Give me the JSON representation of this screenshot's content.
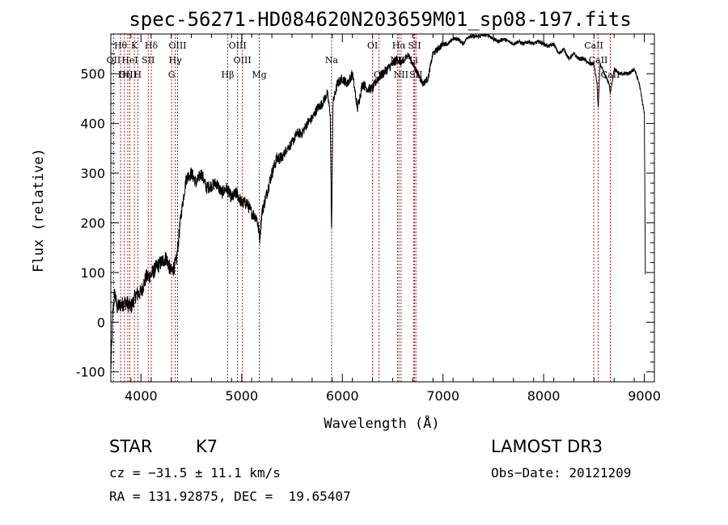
{
  "chart_data": {
    "type": "line",
    "title": "spec-56271-HD084620N203659M01_sp08-197.fits",
    "xlabel": "Wavelength (Å)",
    "ylabel": "Flux (relative)",
    "xlim": [
      3700,
      9100
    ],
    "ylim": [
      -120,
      580
    ],
    "xticks": [
      4000,
      5000,
      6000,
      7000,
      8000,
      9000
    ],
    "yticks": [
      -100,
      0,
      100,
      200,
      300,
      400,
      500
    ],
    "spectrum_anchors": {
      "x": [
        3700,
        3720,
        3740,
        3760,
        3800,
        3850,
        3900,
        3950,
        4000,
        4050,
        4100,
        4150,
        4200,
        4250,
        4300,
        4350,
        4400,
        4450,
        4500,
        4550,
        4600,
        4650,
        4700,
        4750,
        4800,
        4850,
        4900,
        4950,
        5000,
        5050,
        5100,
        5150,
        5180,
        5200,
        5250,
        5300,
        5350,
        5400,
        5450,
        5500,
        5550,
        5600,
        5650,
        5700,
        5750,
        5800,
        5850,
        5880,
        5893,
        5906,
        5950,
        6000,
        6050,
        6100,
        6150,
        6200,
        6250,
        6300,
        6350,
        6400,
        6450,
        6500,
        6550,
        6600,
        6650,
        6700,
        6750,
        6800,
        6850,
        6900,
        6950,
        7000,
        7050,
        7100,
        7150,
        7200,
        7250,
        7300,
        7350,
        7400,
        7450,
        7500,
        7550,
        7600,
        7650,
        7700,
        7750,
        7800,
        7850,
        7900,
        7950,
        8000,
        8050,
        8100,
        8150,
        8200,
        8250,
        8300,
        8350,
        8400,
        8450,
        8500,
        8530,
        8542,
        8560,
        8600,
        8650,
        8662,
        8700,
        8750,
        8800,
        8850,
        8900,
        8950,
        9000,
        9010
      ],
      "y": [
        -100,
        20,
        60,
        30,
        35,
        40,
        30,
        55,
        60,
        90,
        95,
        110,
        120,
        130,
        100,
        120,
        220,
        290,
        300,
        280,
        300,
        270,
        275,
        280,
        260,
        270,
        250,
        260,
        240,
        240,
        220,
        210,
        170,
        220,
        260,
        300,
        330,
        330,
        350,
        360,
        380,
        380,
        400,
        410,
        430,
        440,
        460,
        420,
        170,
        440,
        480,
        490,
        480,
        500,
        430,
        480,
        470,
        470,
        490,
        500,
        510,
        520,
        530,
        520,
        540,
        520,
        500,
        480,
        490,
        540,
        550,
        560,
        560,
        570,
        570,
        560,
        575,
        575,
        575,
        578,
        578,
        570,
        565,
        570,
        565,
        560,
        565,
        560,
        565,
        560,
        565,
        560,
        555,
        560,
        540,
        550,
        530,
        540,
        530,
        530,
        520,
        520,
        480,
        430,
        520,
        500,
        480,
        460,
        510,
        500,
        500,
        500,
        510,
        480,
        420,
        100
      ]
    },
    "emission_lines": [
      {
        "label": "Hθ",
        "wavelength": 3797,
        "row": 0
      },
      {
        "label": "OII",
        "wavelength": 3727,
        "row": 1
      },
      {
        "label": "OIII",
        "wavelength": 3869,
        "row": 2
      },
      {
        "label": "Hη",
        "wavelength": 3835,
        "row": 2
      },
      {
        "label": "K",
        "wavelength": 3934,
        "row": 0
      },
      {
        "label": "HeI",
        "wavelength": 3889,
        "row": 1
      },
      {
        "label": "H",
        "wavelength": 3968,
        "row": 2
      },
      {
        "label": "SII",
        "wavelength": 4072,
        "row": 1
      },
      {
        "label": "Hδ",
        "wavelength": 4102,
        "row": 0
      },
      {
        "label": "OIII",
        "wavelength": 4363,
        "row": 0
      },
      {
        "label": "Hγ",
        "wavelength": 4340,
        "row": 1
      },
      {
        "label": "G",
        "wavelength": 4304,
        "row": 2
      },
      {
        "label": "OIII",
        "wavelength": 4959,
        "row": 0
      },
      {
        "label": "OIII",
        "wavelength": 5007,
        "row": 1
      },
      {
        "label": "Hβ",
        "wavelength": 4861,
        "row": 2
      },
      {
        "label": "Mg",
        "wavelength": 5175,
        "row": 2
      },
      {
        "label": "Na",
        "wavelength": 5893,
        "row": 1
      },
      {
        "label": "OI",
        "wavelength": 6300,
        "row": 0
      },
      {
        "label": "OI",
        "wavelength": 6364,
        "row": 2
      },
      {
        "label": "Hα",
        "wavelength": 6563,
        "row": 0
      },
      {
        "label": "NII",
        "wavelength": 6548,
        "row": 1
      },
      {
        "label": "NII",
        "wavelength": 6583,
        "row": 2
      },
      {
        "label": "SII",
        "wavelength": 6717,
        "row": 0
      },
      {
        "label": "Li",
        "wavelength": 6708,
        "row": 1
      },
      {
        "label": "SII",
        "wavelength": 6731,
        "row": 2
      },
      {
        "label": "CaII",
        "wavelength": 8498,
        "row": 0
      },
      {
        "label": "CaII",
        "wavelength": 8542,
        "row": 1
      },
      {
        "label": "CaII",
        "wavelength": 8662,
        "row": 2
      }
    ]
  },
  "info": {
    "class": "STAR",
    "subclass": "K7",
    "survey": "LAMOST DR3",
    "cz": "cz = −31.5 ± 11.1 km/s",
    "obs_date": "Obs−Date: 20121209",
    "coords": "RA = 131.92875, DEC =  19.65407"
  }
}
